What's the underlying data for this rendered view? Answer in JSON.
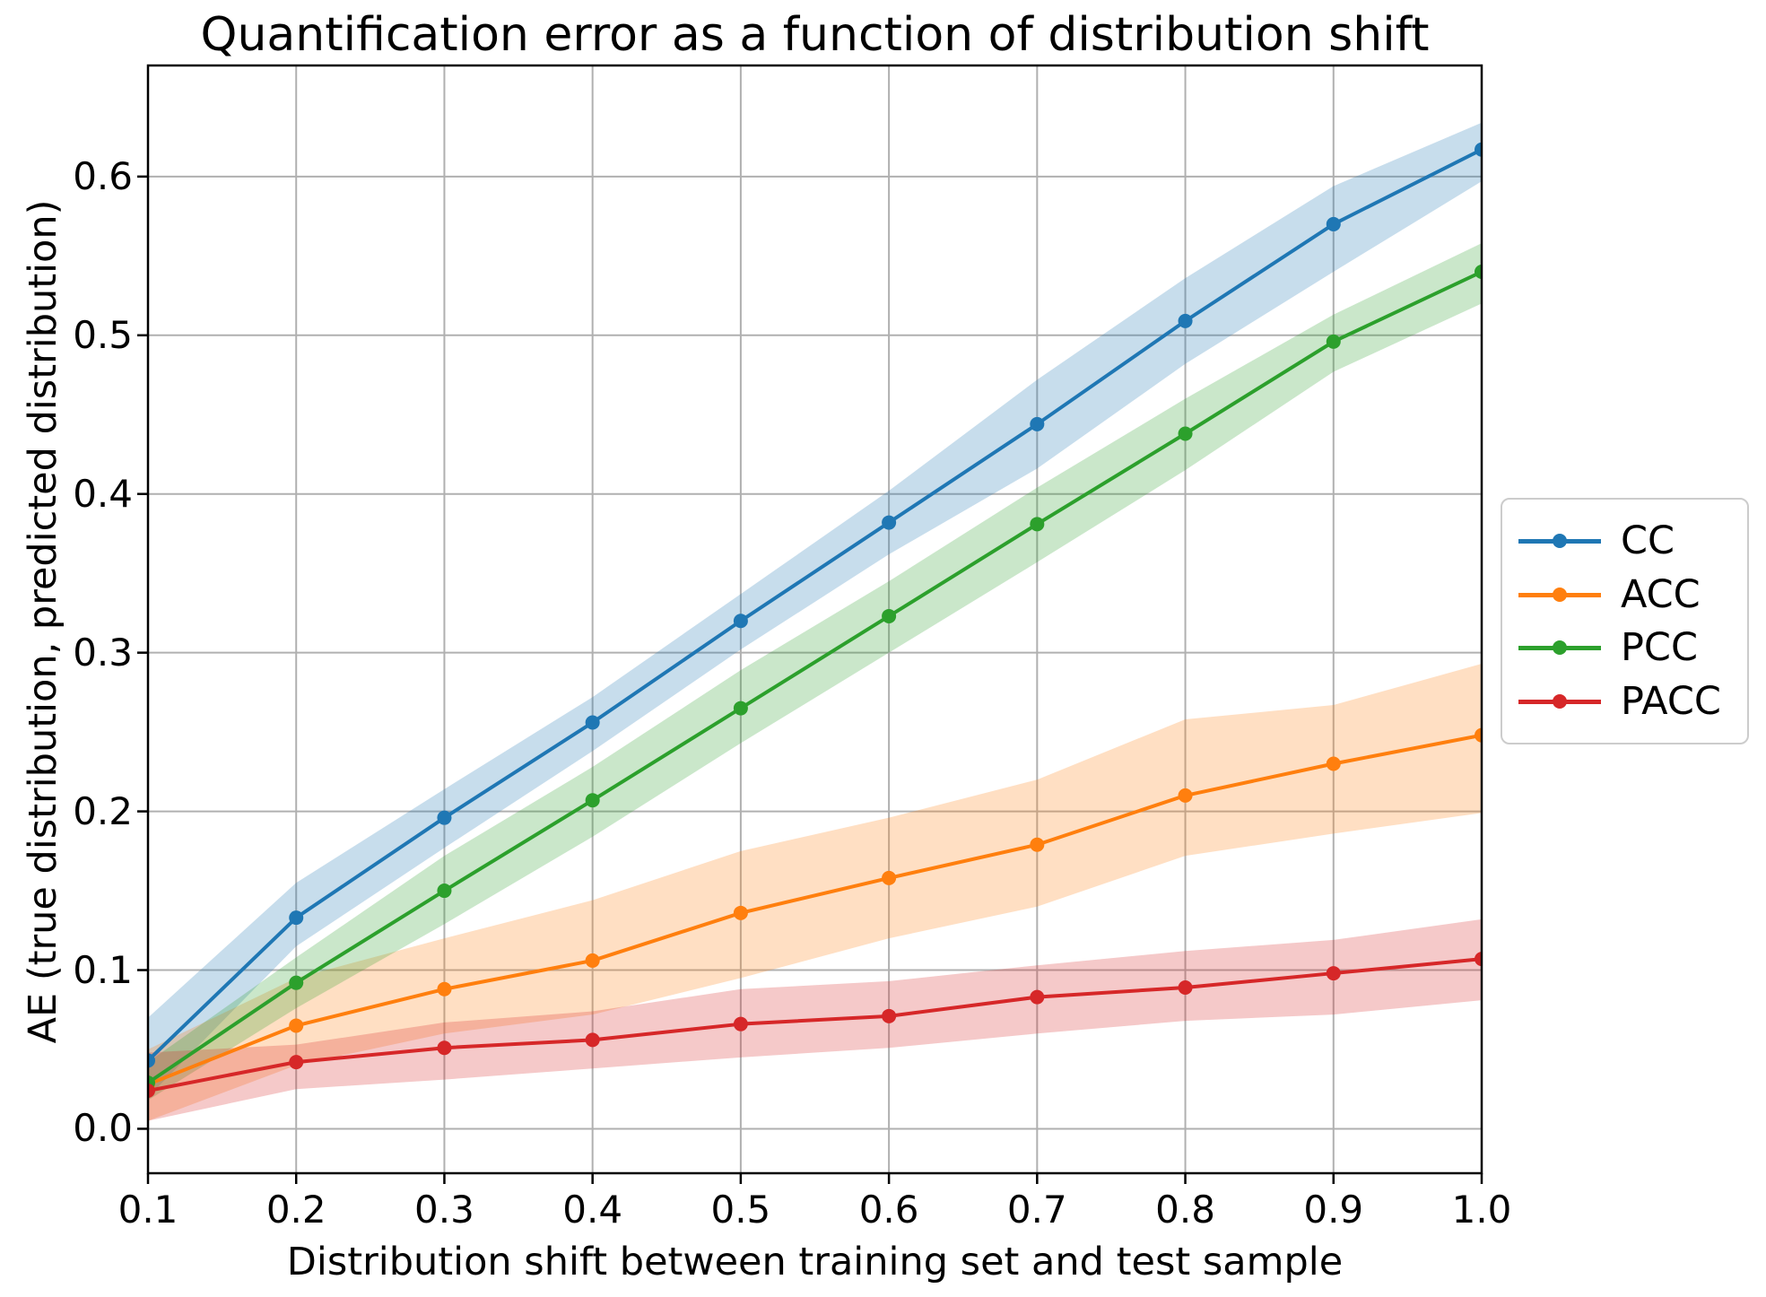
{
  "chart_data": {
    "type": "line",
    "title": "Quantification error as a function of distribution shift",
    "xlabel": "Distribution shift between training set and test sample",
    "ylabel": "AE (true distribution, predicted distribution)",
    "x": [
      0.1,
      0.2,
      0.3,
      0.4,
      0.5,
      0.6,
      0.7,
      0.8,
      0.9,
      1.0
    ],
    "xlim": [
      0.1,
      1.0
    ],
    "ylim": [
      -0.028,
      0.67
    ],
    "x_ticks": [
      0.1,
      0.2,
      0.3,
      0.4,
      0.5,
      0.6,
      0.7,
      0.8,
      0.9,
      1.0
    ],
    "x_tick_labels": [
      "0.1",
      "0.2",
      "0.3",
      "0.4",
      "0.5",
      "0.6",
      "0.7",
      "0.8",
      "0.9",
      "1.0"
    ],
    "y_ticks": [
      0.0,
      0.1,
      0.2,
      0.3,
      0.4,
      0.5,
      0.6
    ],
    "y_tick_labels": [
      "0.0",
      "0.1",
      "0.2",
      "0.3",
      "0.4",
      "0.5",
      "0.6"
    ],
    "grid": true,
    "grid_color": "#b0b0b0",
    "axis_color": "#000000",
    "background": "#ffffff",
    "band_alpha": 0.25,
    "marker": "circle",
    "legend_position": "outside-right",
    "series": [
      {
        "name": "CC",
        "color": "#1f77b4",
        "values": [
          0.043,
          0.133,
          0.196,
          0.256,
          0.32,
          0.382,
          0.444,
          0.509,
          0.57,
          0.617
        ],
        "band_low": [
          0.02,
          0.115,
          0.177,
          0.238,
          0.302,
          0.362,
          0.416,
          0.482,
          0.54,
          0.597
        ],
        "band_high": [
          0.07,
          0.155,
          0.214,
          0.272,
          0.337,
          0.402,
          0.472,
          0.536,
          0.594,
          0.634
        ]
      },
      {
        "name": "ACC",
        "color": "#ff7f0e",
        "values": [
          0.028,
          0.065,
          0.088,
          0.106,
          0.136,
          0.158,
          0.179,
          0.21,
          0.23,
          0.248
        ],
        "band_low": [
          0.005,
          0.04,
          0.06,
          0.072,
          0.095,
          0.12,
          0.14,
          0.172,
          0.186,
          0.199
        ],
        "band_high": [
          0.05,
          0.095,
          0.12,
          0.144,
          0.175,
          0.196,
          0.22,
          0.258,
          0.267,
          0.293
        ]
      },
      {
        "name": "PCC",
        "color": "#2ca02c",
        "values": [
          0.029,
          0.092,
          0.15,
          0.207,
          0.265,
          0.323,
          0.381,
          0.438,
          0.496,
          0.54
        ],
        "band_low": [
          0.018,
          0.076,
          0.129,
          0.184,
          0.243,
          0.3,
          0.357,
          0.415,
          0.477,
          0.52
        ],
        "band_high": [
          0.042,
          0.108,
          0.172,
          0.228,
          0.289,
          0.345,
          0.404,
          0.46,
          0.513,
          0.558
        ]
      },
      {
        "name": "PACC",
        "color": "#d62728",
        "values": [
          0.024,
          0.042,
          0.051,
          0.056,
          0.066,
          0.071,
          0.083,
          0.089,
          0.098,
          0.107
        ],
        "band_low": [
          0.005,
          0.025,
          0.031,
          0.038,
          0.045,
          0.051,
          0.06,
          0.068,
          0.072,
          0.081
        ],
        "band_high": [
          0.048,
          0.053,
          0.067,
          0.074,
          0.088,
          0.093,
          0.103,
          0.112,
          0.119,
          0.132
        ]
      }
    ]
  }
}
